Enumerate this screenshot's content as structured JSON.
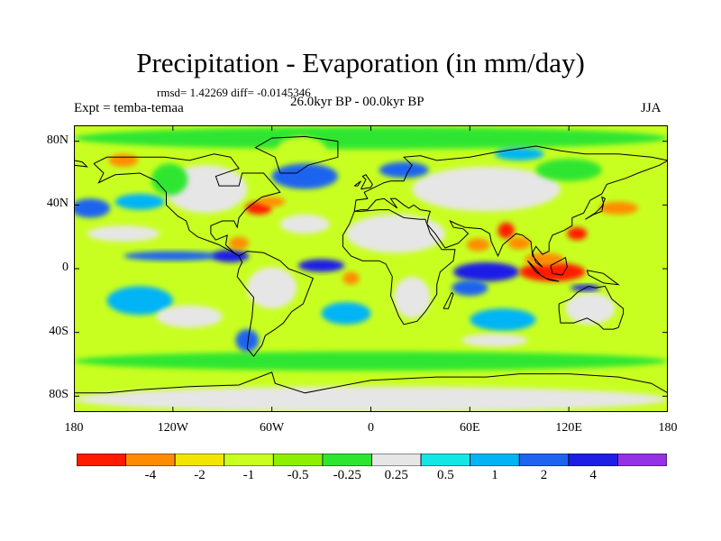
{
  "title": "Precipitation - Evaporation (in mm/day)",
  "stats": "rmsd= 1.42269 diff= -0.0145346",
  "experiment": "Expt = temba-temaa",
  "period": "26.0kyr BP - 00.0kyr BP",
  "season": "JJA",
  "chart_data": {
    "type": "heatmap",
    "title": "Precipitation - Evaporation (in mm/day)",
    "projection": "cylindrical equidistant",
    "x_range": [
      -180,
      180
    ],
    "y_range": [
      -90,
      90
    ],
    "x_ticks": [
      {
        "value": -180,
        "label": "180"
      },
      {
        "value": -120,
        "label": "120W"
      },
      {
        "value": -60,
        "label": "60W"
      },
      {
        "value": 0,
        "label": "0"
      },
      {
        "value": 60,
        "label": "60E"
      },
      {
        "value": 120,
        "label": "120E"
      },
      {
        "value": 180,
        "label": "180"
      }
    ],
    "y_ticks": [
      {
        "value": 80,
        "label": "80N"
      },
      {
        "value": 40,
        "label": "40N"
      },
      {
        "value": 0,
        "label": "0"
      },
      {
        "value": -40,
        "label": "40S"
      },
      {
        "value": -80,
        "label": "80S"
      }
    ],
    "colorbar": {
      "colors": [
        "#ff1a00",
        "#ff8c00",
        "#f2e600",
        "#c8ff20",
        "#8cf000",
        "#2ee630",
        "#e6e6e6",
        "#14e6e6",
        "#00b4f5",
        "#1e64f0",
        "#1e1ee6",
        "#9632e6"
      ],
      "labels": [
        "-4",
        "-2",
        "-1",
        "-0.5",
        "-0.25",
        "0.25",
        "0.5",
        "1",
        "2",
        "4"
      ],
      "label_positions": [
        1.5,
        2.5,
        3.5,
        4.5,
        5.5,
        6.5,
        7.5,
        8.5,
        9.5,
        10.5
      ]
    },
    "background_color": "#c8ff20",
    "regions": [
      {
        "name": "arctic-ocean",
        "color": "#2ee630",
        "lon": 0,
        "lat": 82,
        "w": 360,
        "h": 14
      },
      {
        "name": "greenland-anomaly",
        "color": "#c8ff20",
        "lon": -42,
        "lat": 74,
        "w": 30,
        "h": 18
      },
      {
        "name": "southern-ocean-band",
        "color": "#2ee630",
        "lon": 0,
        "lat": -58,
        "w": 360,
        "h": 12
      },
      {
        "name": "antarctica",
        "color": "#e6e6e6",
        "lon": 0,
        "lat": -82,
        "w": 360,
        "h": 16
      },
      {
        "name": "north-america",
        "color": "#e6e6e6",
        "lon": -100,
        "lat": 50,
        "w": 50,
        "h": 30
      },
      {
        "name": "n-america-west",
        "color": "#2ee630",
        "lon": -122,
        "lat": 56,
        "w": 22,
        "h": 20
      },
      {
        "name": "eurasia",
        "color": "#e6e6e6",
        "lon": 70,
        "lat": 50,
        "w": 90,
        "h": 28
      },
      {
        "name": "siberia-wet",
        "color": "#2ee630",
        "lon": 120,
        "lat": 62,
        "w": 40,
        "h": 14
      },
      {
        "name": "north-africa",
        "color": "#e6e6e6",
        "lon": 15,
        "lat": 22,
        "w": 60,
        "h": 24
      },
      {
        "name": "south-africa",
        "color": "#e6e6e6",
        "lon": 25,
        "lat": -18,
        "w": 22,
        "h": 26
      },
      {
        "name": "south-america",
        "color": "#e6e6e6",
        "lon": -60,
        "lat": -12,
        "w": 30,
        "h": 26
      },
      {
        "name": "australia",
        "color": "#e6e6e6",
        "lon": 133,
        "lat": -25,
        "w": 30,
        "h": 20
      },
      {
        "name": "n-atlantic-low",
        "color": "#1e64f0",
        "lon": -40,
        "lat": 58,
        "w": 40,
        "h": 16
      },
      {
        "name": "gulf-stream-dry",
        "color": "#ff1a00",
        "lon": -68,
        "lat": 38,
        "w": 16,
        "h": 8
      },
      {
        "name": "gulf-stream-orange",
        "color": "#ff8c00",
        "lon": -60,
        "lat": 42,
        "w": 16,
        "h": 6
      },
      {
        "name": "n-pacific-blue",
        "color": "#1e64f0",
        "lon": -170,
        "lat": 38,
        "w": 24,
        "h": 12
      },
      {
        "name": "ne-pacific-wet",
        "color": "#00b4f5",
        "lon": -140,
        "lat": 42,
        "w": 30,
        "h": 10
      },
      {
        "name": "pacific-itcz",
        "color": "#1e64f0",
        "lon": -120,
        "lat": 8,
        "w": 60,
        "h": 6
      },
      {
        "name": "eastern-pacific-itcz",
        "color": "#1e1ee6",
        "lon": -85,
        "lat": 8,
        "w": 22,
        "h": 8
      },
      {
        "name": "caribbean-dry",
        "color": "#ff8c00",
        "lon": -80,
        "lat": 16,
        "w": 12,
        "h": 8
      },
      {
        "name": "atlantic-itcz",
        "color": "#1e1ee6",
        "lon": -30,
        "lat": 2,
        "w": 28,
        "h": 8
      },
      {
        "name": "atlantic-dry",
        "color": "#ff8c00",
        "lon": -12,
        "lat": -6,
        "w": 10,
        "h": 8
      },
      {
        "name": "indian-ocean-wet",
        "color": "#1e1ee6",
        "lon": 70,
        "lat": -2,
        "w": 40,
        "h": 12
      },
      {
        "name": "indian-ocean-wet-2",
        "color": "#1e64f0",
        "lon": 60,
        "lat": -12,
        "w": 22,
        "h": 10
      },
      {
        "name": "arabian-sea-dry",
        "color": "#ff8c00",
        "lon": 65,
        "lat": 15,
        "w": 14,
        "h": 8
      },
      {
        "name": "india-dry",
        "color": "#ff1a00",
        "lon": 82,
        "lat": 24,
        "w": 10,
        "h": 10
      },
      {
        "name": "bay-of-bengal",
        "color": "#ff8c00",
        "lon": 90,
        "lat": 16,
        "w": 14,
        "h": 8
      },
      {
        "name": "maritime-continent-dry",
        "color": "#ff1a00",
        "lon": 110,
        "lat": -2,
        "w": 40,
        "h": 12
      },
      {
        "name": "sunda-dry",
        "color": "#ff8c00",
        "lon": 105,
        "lat": 6,
        "w": 24,
        "h": 8
      },
      {
        "name": "timor-wet",
        "color": "#1e1ee6",
        "lon": 130,
        "lat": -12,
        "w": 18,
        "h": 4
      },
      {
        "name": "west-pacific-orange",
        "color": "#ff8c00",
        "lon": 150,
        "lat": 38,
        "w": 24,
        "h": 8
      },
      {
        "name": "w-pacific-dry-core",
        "color": "#ff1a00",
        "lon": 125,
        "lat": 22,
        "w": 12,
        "h": 8
      },
      {
        "name": "s-pacific-wet",
        "color": "#00b4f5",
        "lon": -140,
        "lat": -20,
        "w": 40,
        "h": 18
      },
      {
        "name": "s-atlantic-wet",
        "color": "#00b4f5",
        "lon": -15,
        "lat": -28,
        "w": 30,
        "h": 14
      },
      {
        "name": "s-indian-wet",
        "color": "#00b4f5",
        "lon": 80,
        "lat": -32,
        "w": 40,
        "h": 14
      },
      {
        "name": "patagonia-wet",
        "color": "#1e64f0",
        "lon": -75,
        "lat": -45,
        "w": 14,
        "h": 14
      },
      {
        "name": "pacific-sub-dry",
        "color": "#e6e6e6",
        "lon": -110,
        "lat": -30,
        "w": 40,
        "h": 14
      },
      {
        "name": "atlantic-sub-dry",
        "color": "#e6e6e6",
        "lon": -40,
        "lat": 28,
        "w": 30,
        "h": 12
      },
      {
        "name": "indian-sub-dry",
        "color": "#e6e6e6",
        "lon": 75,
        "lat": -45,
        "w": 40,
        "h": 8
      },
      {
        "name": "n-pacific-gray",
        "color": "#e6e6e6",
        "lon": -150,
        "lat": 22,
        "w": 44,
        "h": 10
      },
      {
        "name": "europe-blue",
        "color": "#1e64f0",
        "lon": 20,
        "lat": 62,
        "w": 30,
        "h": 10
      },
      {
        "name": "siberia-blue",
        "color": "#00b4f5",
        "lon": 90,
        "lat": 72,
        "w": 30,
        "h": 8
      },
      {
        "name": "alaska-orange",
        "color": "#ff8c00",
        "lon": -150,
        "lat": 68,
        "w": 18,
        "h": 8
      }
    ],
    "coastline_note": "approximate coastlines drawn as polylines"
  },
  "coastlines": [
    [
      [
        -168,
        66
      ],
      [
        -160,
        70
      ],
      [
        -140,
        70
      ],
      [
        -125,
        70
      ],
      [
        -110,
        68
      ],
      [
        -95,
        72
      ],
      [
        -85,
        70
      ],
      [
        -80,
        63
      ],
      [
        -94,
        58
      ],
      [
        -92,
        52
      ],
      [
        -80,
        52
      ],
      [
        -78,
        60
      ],
      [
        -65,
        60
      ],
      [
        -60,
        54
      ],
      [
        -55,
        48
      ],
      [
        -66,
        45
      ],
      [
        -70,
        42
      ],
      [
        -76,
        37
      ],
      [
        -80,
        32
      ],
      [
        -81,
        26
      ],
      [
        -83,
        30
      ],
      [
        -90,
        30
      ],
      [
        -97,
        27
      ],
      [
        -97,
        22
      ],
      [
        -94,
        18
      ],
      [
        -87,
        21
      ],
      [
        -88,
        15
      ],
      [
        -83,
        10
      ],
      [
        -80,
        8
      ],
      [
        -85,
        11
      ],
      [
        -92,
        15
      ],
      [
        -105,
        20
      ],
      [
        -110,
        24
      ],
      [
        -112,
        30
      ],
      [
        -117,
        33
      ],
      [
        -124,
        40
      ],
      [
        -124,
        48
      ],
      [
        -130,
        55
      ],
      [
        -140,
        60
      ],
      [
        -155,
        59
      ],
      [
        -165,
        54
      ],
      [
        -162,
        60
      ],
      [
        -166,
        64
      ],
      [
        -168,
        66
      ]
    ],
    [
      [
        -80,
        8
      ],
      [
        -75,
        11
      ],
      [
        -65,
        10
      ],
      [
        -55,
        5
      ],
      [
        -50,
        0
      ],
      [
        -42,
        -3
      ],
      [
        -35,
        -6
      ],
      [
        -38,
        -14
      ],
      [
        -41,
        -22
      ],
      [
        -48,
        -27
      ],
      [
        -53,
        -34
      ],
      [
        -58,
        -38
      ],
      [
        -64,
        -42
      ],
      [
        -66,
        -48
      ],
      [
        -69,
        -52
      ],
      [
        -71,
        -55
      ],
      [
        -75,
        -50
      ],
      [
        -74,
        -42
      ],
      [
        -72,
        -30
      ],
      [
        -71,
        -18
      ],
      [
        -76,
        -12
      ],
      [
        -81,
        -5
      ],
      [
        -80,
        0
      ],
      [
        -78,
        4
      ],
      [
        -80,
        8
      ]
    ],
    [
      [
        -55,
        60
      ],
      [
        -45,
        60
      ],
      [
        -38,
        65
      ],
      [
        -20,
        70
      ],
      [
        -20,
        80
      ],
      [
        -40,
        83
      ],
      [
        -60,
        82
      ],
      [
        -70,
        76
      ],
      [
        -58,
        70
      ],
      [
        -55,
        60
      ]
    ],
    [
      [
        -10,
        36
      ],
      [
        -6,
        36
      ],
      [
        5,
        37
      ],
      [
        11,
        37
      ],
      [
        20,
        32
      ],
      [
        30,
        31
      ],
      [
        33,
        31
      ],
      [
        36,
        22
      ],
      [
        43,
        12
      ],
      [
        51,
        12
      ],
      [
        50,
        5
      ],
      [
        42,
        -2
      ],
      [
        40,
        -10
      ],
      [
        40,
        -16
      ],
      [
        35,
        -24
      ],
      [
        33,
        -27
      ],
      [
        28,
        -33
      ],
      [
        20,
        -35
      ],
      [
        17,
        -30
      ],
      [
        12,
        -17
      ],
      [
        13,
        -5
      ],
      [
        9,
        3
      ],
      [
        5,
        5
      ],
      [
        -5,
        5
      ],
      [
        -12,
        8
      ],
      [
        -17,
        14
      ],
      [
        -17,
        21
      ],
      [
        -13,
        28
      ],
      [
        -10,
        36
      ]
    ],
    [
      [
        -10,
        36
      ],
      [
        -9,
        43
      ],
      [
        -2,
        44
      ],
      [
        -4,
        48
      ],
      [
        2,
        51
      ],
      [
        8,
        54
      ],
      [
        12,
        55
      ],
      [
        20,
        55
      ],
      [
        22,
        60
      ],
      [
        25,
        65
      ],
      [
        20,
        70
      ],
      [
        30,
        71
      ],
      [
        40,
        68
      ],
      [
        60,
        70
      ],
      [
        75,
        73
      ],
      [
        100,
        77
      ],
      [
        115,
        74
      ],
      [
        130,
        72
      ],
      [
        150,
        72
      ],
      [
        170,
        70
      ],
      [
        180,
        68
      ]
    ],
    [
      [
        -180,
        65
      ],
      [
        -172,
        64
      ],
      [
        -175,
        67
      ],
      [
        -180,
        68
      ]
    ],
    [
      [
        180,
        68
      ],
      [
        175,
        65
      ],
      [
        162,
        60
      ],
      [
        155,
        57
      ],
      [
        143,
        53
      ],
      [
        140,
        47
      ],
      [
        133,
        43
      ],
      [
        129,
        35
      ],
      [
        122,
        32
      ],
      [
        122,
        27
      ],
      [
        117,
        24
      ],
      [
        110,
        21
      ],
      [
        108,
        16
      ],
      [
        108,
        11
      ],
      [
        104,
        9
      ],
      [
        100,
        14
      ],
      [
        98,
        10
      ],
      [
        100,
        4
      ],
      [
        104,
        1
      ],
      [
        98,
        8
      ],
      [
        97,
        17
      ],
      [
        92,
        21
      ],
      [
        88,
        22
      ],
      [
        80,
        15
      ],
      [
        77,
        8
      ],
      [
        73,
        17
      ],
      [
        72,
        22
      ],
      [
        67,
        25
      ],
      [
        57,
        26
      ],
      [
        52,
        28
      ],
      [
        48,
        30
      ],
      [
        50,
        26
      ],
      [
        56,
        25
      ],
      [
        59,
        22
      ],
      [
        53,
        16
      ],
      [
        45,
        13
      ],
      [
        43,
        16
      ],
      [
        39,
        22
      ],
      [
        34,
        28
      ],
      [
        35,
        33
      ],
      [
        36,
        36
      ],
      [
        30,
        37
      ],
      [
        26,
        40
      ],
      [
        23,
        38
      ],
      [
        20,
        40
      ],
      [
        15,
        44
      ],
      [
        12,
        44
      ],
      [
        14,
        41
      ],
      [
        16,
        38
      ],
      [
        12,
        41
      ],
      [
        8,
        44
      ],
      [
        3,
        43
      ],
      [
        -2,
        37
      ],
      [
        -6,
        37
      ],
      [
        -10,
        36
      ]
    ],
    [
      [
        114,
        -22
      ],
      [
        114,
        -26
      ],
      [
        115,
        -34
      ],
      [
        123,
        -34
      ],
      [
        131,
        -31
      ],
      [
        138,
        -35
      ],
      [
        141,
        -38
      ],
      [
        147,
        -38
      ],
      [
        150,
        -37
      ],
      [
        153,
        -28
      ],
      [
        153,
        -25
      ],
      [
        146,
        -19
      ],
      [
        142,
        -11
      ],
      [
        136,
        -12
      ],
      [
        132,
        -11
      ],
      [
        125,
        -15
      ],
      [
        121,
        -19
      ],
      [
        114,
        -22
      ]
    ],
    [
      [
        95,
        5
      ],
      [
        100,
        -2
      ],
      [
        106,
        -6
      ],
      [
        103,
        -4
      ],
      [
        97,
        3
      ],
      [
        95,
        5
      ]
    ],
    [
      [
        109,
        2
      ],
      [
        118,
        7
      ],
      [
        119,
        1
      ],
      [
        116,
        -4
      ],
      [
        110,
        -3
      ],
      [
        109,
        2
      ]
    ],
    [
      [
        106,
        -6
      ],
      [
        114,
        -8
      ],
      [
        108,
        -7
      ],
      [
        106,
        -6
      ]
    ],
    [
      [
        131,
        -1
      ],
      [
        141,
        -3
      ],
      [
        150,
        -10
      ],
      [
        141,
        -9
      ],
      [
        132,
        -4
      ],
      [
        131,
        -1
      ]
    ],
    [
      [
        130,
        31
      ],
      [
        135,
        34
      ],
      [
        140,
        36
      ],
      [
        141,
        41
      ],
      [
        140,
        45
      ],
      [
        142,
        44
      ],
      [
        140,
        39
      ],
      [
        136,
        35
      ],
      [
        130,
        31
      ]
    ],
    [
      [
        -6,
        50
      ],
      [
        -3,
        56
      ],
      [
        -5,
        58
      ],
      [
        -3,
        59
      ],
      [
        1,
        53
      ],
      [
        0,
        51
      ],
      [
        -6,
        50
      ]
    ],
    [
      [
        -10,
        52
      ],
      [
        -6,
        55
      ],
      [
        -8,
        52
      ],
      [
        -10,
        52
      ]
    ],
    [
      [
        44,
        -25
      ],
      [
        49,
        -15
      ],
      [
        50,
        -16
      ],
      [
        47,
        -25
      ],
      [
        44,
        -25
      ]
    ],
    [
      [
        -180,
        -78
      ],
      [
        -160,
        -78
      ],
      [
        -140,
        -76
      ],
      [
        -110,
        -74
      ],
      [
        -80,
        -73
      ],
      [
        -60,
        -65
      ],
      [
        -58,
        -72
      ],
      [
        -40,
        -78
      ],
      [
        -20,
        -74
      ],
      [
        0,
        -70
      ],
      [
        40,
        -68
      ],
      [
        70,
        -68
      ],
      [
        90,
        -66
      ],
      [
        120,
        -66
      ],
      [
        150,
        -68
      ],
      [
        170,
        -72
      ],
      [
        180,
        -78
      ]
    ]
  ]
}
